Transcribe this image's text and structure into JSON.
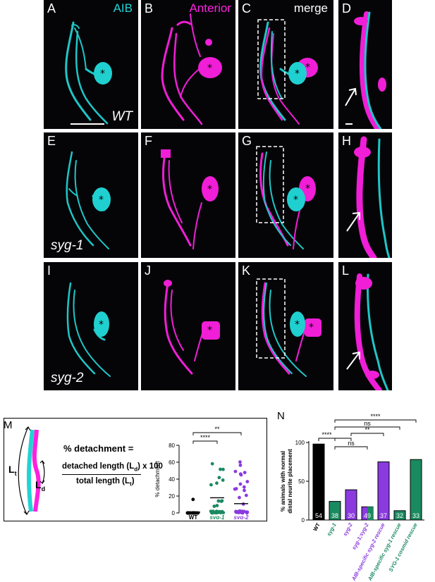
{
  "labels": {
    "A": "A",
    "B": "B",
    "C": "C",
    "D": "D",
    "E": "E",
    "F": "F",
    "G": "G",
    "H": "H",
    "I": "I",
    "J": "J",
    "K": "K",
    "L": "L",
    "M": "M",
    "N": "N"
  },
  "channels": {
    "aib": "AIB",
    "anterior": "Anterior",
    "merge": "merge"
  },
  "conditions": {
    "wt": "WT",
    "syg1": "syg-1",
    "syg2": "syg-2"
  },
  "colors": {
    "cyan": "#22d3d3",
    "magenta": "#ff20e0",
    "wt": "#000000",
    "syg1": "#1a8a60",
    "syg2": "#8a3adf"
  },
  "formula": {
    "lhs": "% detachment =",
    "numerator": "detached length (L",
    "num_sub": "d",
    "num_tail": ") x 100",
    "denominator": "total length (L",
    "den_sub": "t",
    "den_tail": ")",
    "lt": "L",
    "lt_sub": "t",
    "ld": "L",
    "ld_sub": "d"
  },
  "chart_data": [
    {
      "type": "scatter",
      "ylabel": "% detachment",
      "ylim": [
        0,
        80
      ],
      "yticks": [
        0,
        20,
        40,
        60,
        80
      ],
      "categories": [
        "WT",
        "syg-1",
        "syg-2"
      ],
      "means": [
        1,
        18,
        11
      ],
      "significance": [
        {
          "from": "WT",
          "to": "syg-1",
          "label": "****"
        },
        {
          "from": "WT",
          "to": "syg-2",
          "label": "**"
        }
      ]
    },
    {
      "type": "bar",
      "ylabel": "% animals with normal distal neurite placement",
      "ylim": [
        0,
        100
      ],
      "yticks": [
        0,
        50,
        100
      ],
      "categories": [
        "WT",
        "syg-1",
        "syg-2",
        "syg-1;syg-2",
        "AIB-specific syg-2 rescue",
        "AIB-specific syg-1 rescue",
        "SYG-1 cosmid rescue"
      ],
      "values": [
        98,
        24,
        39,
        17,
        75,
        12,
        78
      ],
      "n": [
        "54",
        "38",
        "30",
        "49",
        "37",
        "32",
        "33"
      ],
      "significance": [
        {
          "label": "****"
        },
        {
          "label": "ns"
        },
        {
          "label": "****"
        },
        {
          "label": "ns"
        },
        {
          "label": "**"
        }
      ]
    }
  ]
}
